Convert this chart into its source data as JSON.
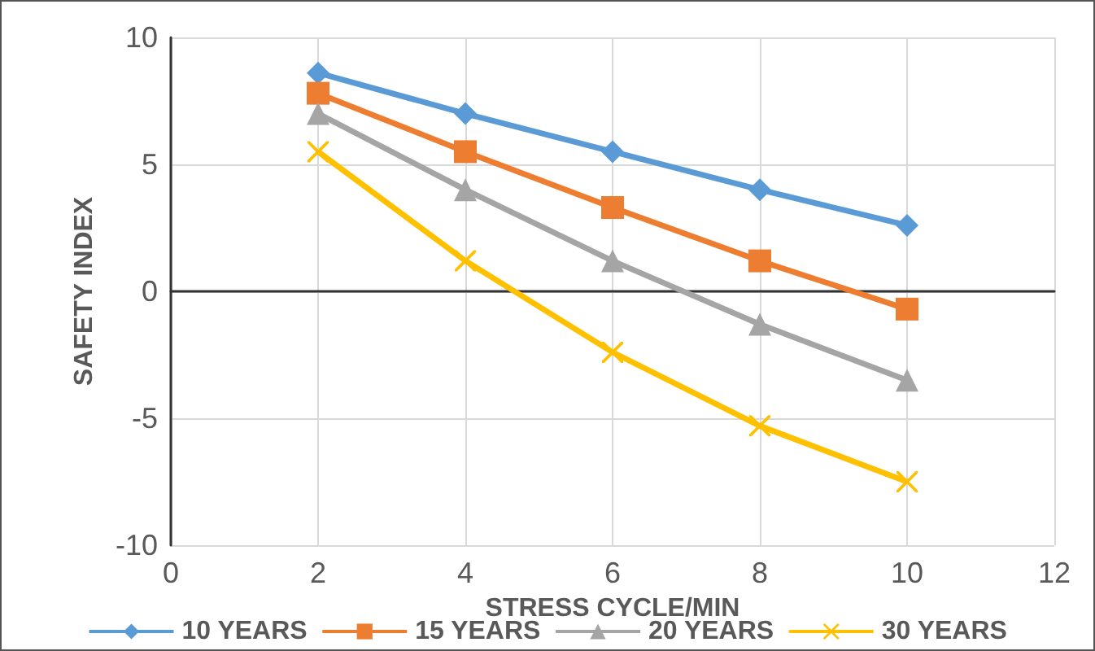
{
  "chart_data": {
    "type": "line",
    "xlabel": "STRESS CYCLE/MIN",
    "ylabel": "SAFETY INDEX",
    "x": [
      2,
      4,
      6,
      8,
      10
    ],
    "series": [
      {
        "name": "10 YEARS",
        "color": "#5b9bd5",
        "marker": "diamond",
        "values": [
          8.6,
          7.0,
          5.5,
          4.0,
          2.6
        ]
      },
      {
        "name": "15 YEARS",
        "color": "#ed7d31",
        "marker": "square",
        "values": [
          7.8,
          5.5,
          3.3,
          1.2,
          -0.7
        ]
      },
      {
        "name": "20 YEARS",
        "color": "#a5a5a5",
        "marker": "triangle",
        "values": [
          7.0,
          4.0,
          1.2,
          -1.3,
          -3.5
        ]
      },
      {
        "name": "30 YEARS",
        "color": "#ffc000",
        "marker": "cross",
        "values": [
          5.5,
          1.2,
          -2.4,
          -5.3,
          -7.5
        ]
      }
    ],
    "xlim": [
      0,
      12
    ],
    "xticks": [
      0,
      2,
      4,
      6,
      8,
      10,
      12
    ],
    "ylim": [
      -10,
      10
    ],
    "yticks": [
      -10,
      -5,
      0,
      5,
      10
    ],
    "grid": true,
    "legend": "bottom",
    "line_style": "solid"
  }
}
